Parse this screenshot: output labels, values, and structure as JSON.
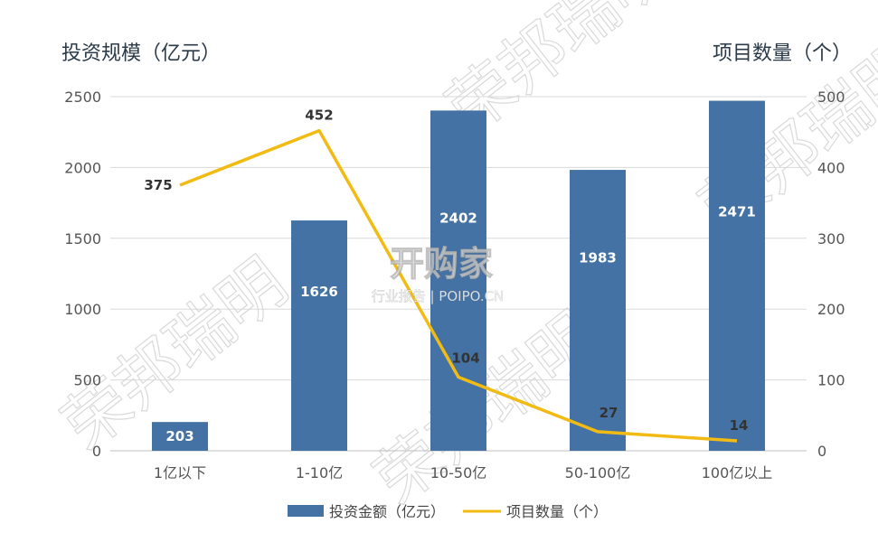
{
  "chart_data": {
    "type": "bar",
    "left_axis_title": "投资规模（亿元）",
    "right_axis_title": "项目数量（个）",
    "categories": [
      "1亿以下",
      "1-10亿",
      "10-50亿",
      "50-100亿",
      "100亿以上"
    ],
    "series": [
      {
        "name": "投资金额（亿元）",
        "type": "bar",
        "axis": "left",
        "values": [
          203,
          1626,
          2402,
          1983,
          2471
        ],
        "color": "#4472a4"
      },
      {
        "name": "项目数量（个）",
        "type": "line",
        "axis": "right",
        "values": [
          375,
          452,
          104,
          27,
          14
        ],
        "color": "#f2bb14"
      }
    ],
    "ylim_left": [
      0,
      2500
    ],
    "ylim_right": [
      0,
      500
    ],
    "yticks_left": [
      "0",
      "500",
      "1000",
      "1500",
      "2000",
      "2500"
    ],
    "yticks_right": [
      "0",
      "100",
      "200",
      "300",
      "400",
      "500"
    ],
    "grid": true,
    "legend_position": "bottom",
    "watermarks": {
      "seal": "荣邦瑞明",
      "logo": "开购家",
      "logo_sub": "行业报告 | POIPO.CN"
    }
  }
}
